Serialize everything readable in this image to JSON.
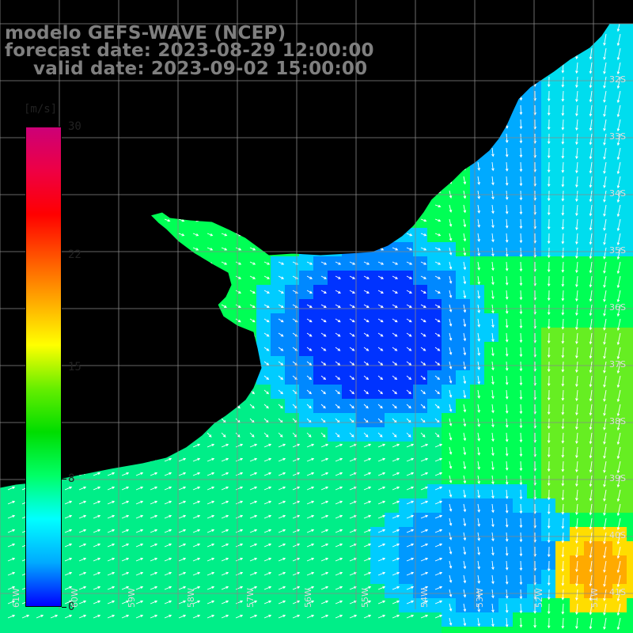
{
  "title": {
    "line1": "modelo GEFS-WAVE (NCEP)",
    "line2": "forecast date: 2023-08-29 12:00:00",
    "line3": "valid date: 2023-09-02 15:00:00"
  },
  "colorbar": {
    "units": "[m/s]",
    "ticks": [
      {
        "label": "30",
        "value": 30
      },
      {
        "label": "22",
        "value": 22
      },
      {
        "label": "15",
        "value": 15
      },
      {
        "label": "8",
        "value": 8
      },
      {
        "label": "0",
        "value": 0
      }
    ],
    "colors": [
      "#0000ff",
      "#00aaff",
      "#00ffff",
      "#00ff66",
      "#00dd00",
      "#66ee00",
      "#ffff00",
      "#ffaa00",
      "#ff5500",
      "#ff0000",
      "#ee0044",
      "#cc0077"
    ]
  },
  "map": {
    "lat_labels": [
      "32S",
      "33S",
      "34S",
      "35S",
      "36S",
      "37S",
      "38S",
      "39S",
      "40S",
      "41S"
    ],
    "lon_labels": [
      "61W",
      "60W",
      "59W",
      "58W",
      "57W",
      "56W",
      "55W",
      "54W",
      "53W",
      "52W",
      "51W"
    ],
    "land_color": "#ffffff",
    "grid_color": "#888888",
    "arrow_color": "#ffffff"
  }
}
